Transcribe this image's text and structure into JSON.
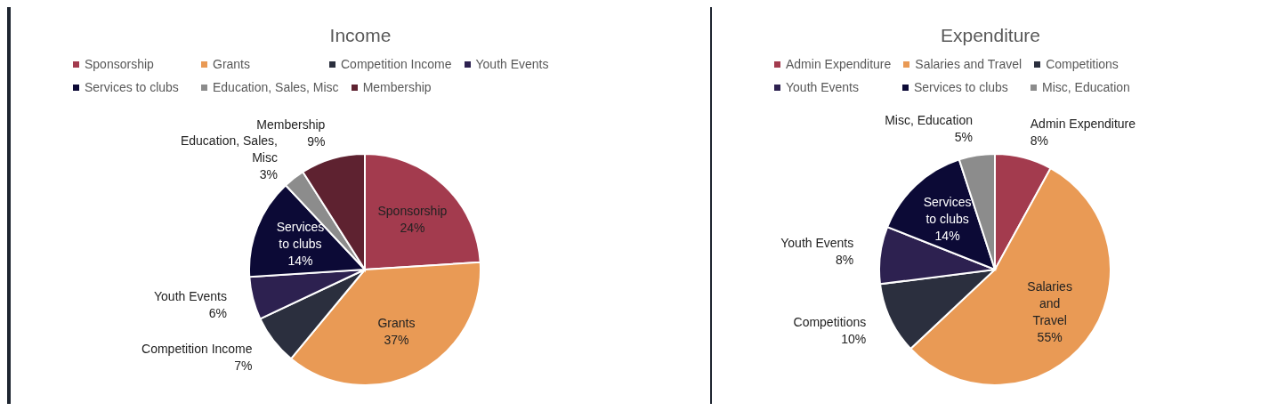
{
  "chart_data": [
    {
      "type": "pie",
      "title": "Income",
      "categories": [
        "Sponsorship",
        "Grants",
        "Competition Income",
        "Youth Events",
        "Services to clubs",
        "Education, Sales, Misc",
        "Membership"
      ],
      "values": [
        24,
        37,
        7,
        6,
        14,
        3,
        9
      ],
      "colors": [
        "#a33b4e",
        "#e99a55",
        "#2b2f3e",
        "#2d2150",
        "#0c0a36",
        "#8c8c8c",
        "#5e2230"
      ],
      "legend": "top",
      "value_labels": [
        "24%",
        "37%",
        "7%",
        "6%",
        "14%",
        "3%",
        "9%"
      ]
    },
    {
      "type": "pie",
      "title": "Expenditure",
      "categories": [
        "Admin Expenditure",
        "Salaries and Travel",
        "Competitions",
        "Youth Events",
        "Services to clubs",
        "Misc, Education"
      ],
      "values": [
        8,
        55,
        10,
        8,
        14,
        5
      ],
      "colors": [
        "#a33b4e",
        "#e99a55",
        "#2b2f3e",
        "#2d2150",
        "#0c0a36",
        "#8c8c8c"
      ],
      "legend": "top",
      "value_labels": [
        "8%",
        "55%",
        "10%",
        "8%",
        "14%",
        "5%"
      ]
    }
  ]
}
